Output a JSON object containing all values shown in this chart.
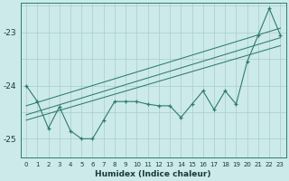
{
  "xlabel": "Humidex (Indice chaleur)",
  "background_color": "#cceaea",
  "grid_color": "#aacccc",
  "line_color": "#2e7b6e",
  "xlim": [
    -0.5,
    23.5
  ],
  "ylim": [
    -25.35,
    -22.45
  ],
  "yticks": [
    -25,
    -24,
    -23
  ],
  "xticks": [
    0,
    1,
    2,
    3,
    4,
    5,
    6,
    7,
    8,
    9,
    10,
    11,
    12,
    13,
    14,
    15,
    16,
    17,
    18,
    19,
    20,
    21,
    22,
    23
  ],
  "main_data_x": [
    0,
    1,
    2,
    3,
    4,
    5,
    6,
    7,
    8,
    9,
    10,
    11,
    12,
    13,
    14,
    15,
    16,
    17,
    18,
    19,
    20,
    21,
    22,
    23
  ],
  "main_data_y": [
    -24.0,
    -24.3,
    -24.8,
    -24.4,
    -24.85,
    -25.0,
    -25.0,
    -24.65,
    -24.3,
    -24.3,
    -24.3,
    -24.35,
    -24.38,
    -24.38,
    -24.6,
    -24.35,
    -24.1,
    -24.45,
    -24.1,
    -24.35,
    -23.55,
    -23.05,
    -22.55,
    -23.05
  ],
  "trend1_x": [
    0,
    23
  ],
  "trend1_y": [
    -24.38,
    -22.92
  ],
  "trend2_x": [
    0,
    23
  ],
  "trend2_y": [
    -24.55,
    -23.1
  ],
  "trend3_x": [
    0,
    23
  ],
  "trend3_y": [
    -24.65,
    -23.25
  ]
}
